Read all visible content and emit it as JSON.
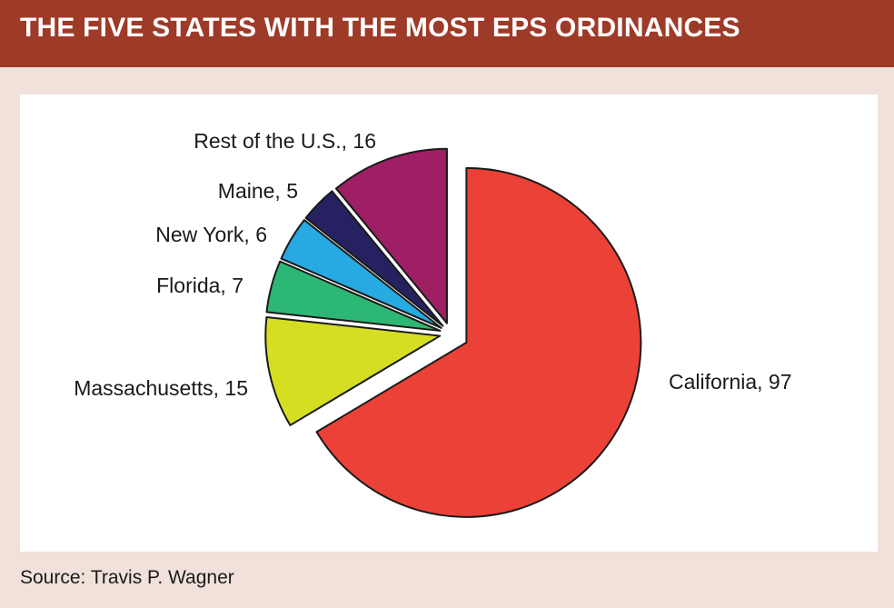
{
  "header": {
    "title": "THE FIVE STATES WITH THE MOST EPS ORDINANCES"
  },
  "source": "Source: Travis P. Wagner",
  "chart_data": {
    "type": "pie",
    "title": "THE FIVE STATES WITH THE MOST EPS ORDINANCES",
    "exploded": true,
    "start": "12 o'clock",
    "direction": "clockwise",
    "slices": [
      {
        "label": "California, 97",
        "name": "California",
        "value": 97,
        "color": "#ec4137"
      },
      {
        "label": "Massachusetts, 15",
        "name": "Massachusetts",
        "value": 15,
        "color": "#d5de21"
      },
      {
        "label": "Florida, 7",
        "name": "Florida",
        "value": 7,
        "color": "#2db774"
      },
      {
        "label": "New York, 6",
        "name": "New York",
        "value": 6,
        "color": "#27aae1"
      },
      {
        "label": "Maine, 5",
        "name": "Maine",
        "value": 5,
        "color": "#262262"
      },
      {
        "label": "Rest of the U.S., 16",
        "name": "Rest of the U.S.",
        "value": 16,
        "color": "#9e1f63"
      }
    ]
  }
}
